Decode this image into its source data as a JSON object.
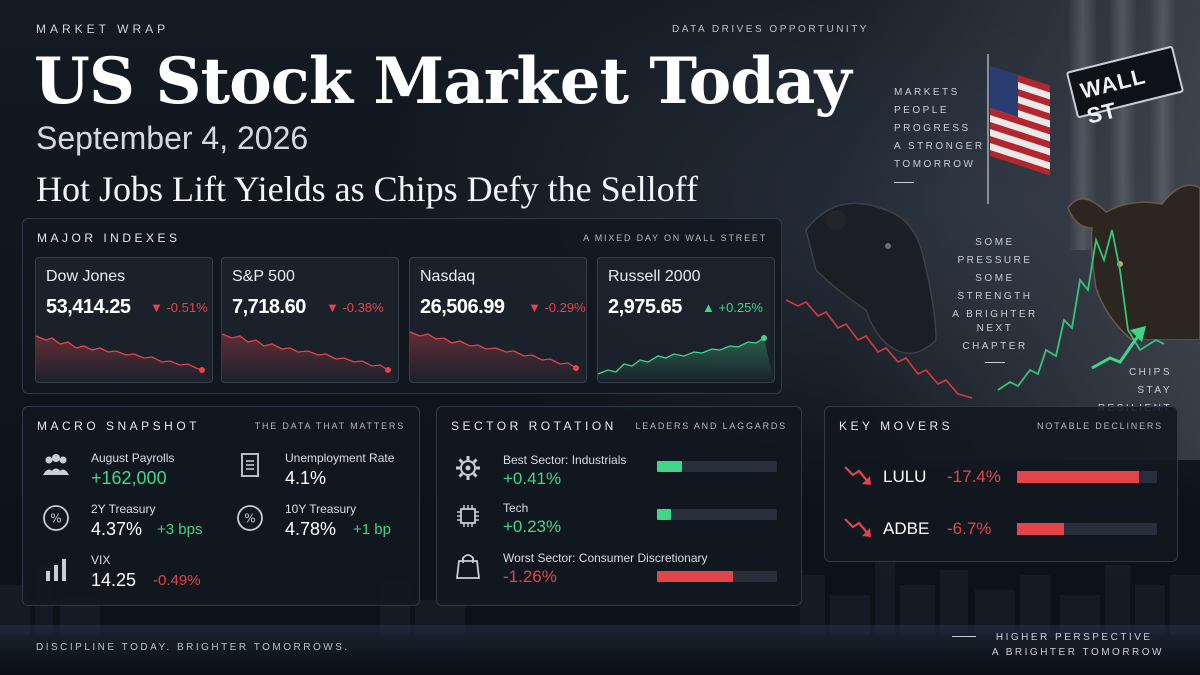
{
  "header": {
    "kicker": "MARKET WRAP",
    "tagline": "DATA DRIVES OPPORTUNITY",
    "title": "US Stock Market Today",
    "date": "September 4, 2026",
    "subtitle": "Hot Jobs Lift Yields as Chips Defy the Selloff"
  },
  "side_text": {
    "upper": [
      "MARKETS",
      "PEOPLE",
      "PROGRESS",
      "A STRONGER",
      "TOMORROW"
    ],
    "middle": [
      "SOME",
      "PRESSURE",
      "SOME",
      "STRENGTH",
      "A BRIGHTER",
      "NEXT CHAPTER"
    ],
    "chips": [
      "CHIPS",
      "STAY RESILIENT"
    ],
    "wall_sign": "WALL ST"
  },
  "indexes": {
    "heading": "MAJOR INDEXES",
    "note": "A MIXED DAY ON WALL STREET",
    "items": [
      {
        "name": "Dow Jones",
        "value": "53,414.25",
        "change": "▼ -0.51%",
        "direction": "down"
      },
      {
        "name": "S&P 500",
        "value": "7,718.60",
        "change": "▼ -0.38%",
        "direction": "down"
      },
      {
        "name": "Nasdaq",
        "value": "26,506.99",
        "change": "▼ -0.29%",
        "direction": "down"
      },
      {
        "name": "Russell 2000",
        "value": "2,975.65",
        "change": "▲ +0.25%",
        "direction": "up"
      }
    ]
  },
  "macro": {
    "heading": "MACRO SNAPSHOT",
    "note": "THE DATA THAT MATTERS",
    "payrolls": {
      "label": "August Payrolls",
      "value": "+162,000",
      "icon": "people-icon"
    },
    "unemployment": {
      "label": "Unemployment Rate",
      "value": "4.1%",
      "icon": "document-icon"
    },
    "t2y": {
      "label": "2Y Treasury",
      "value": "4.37%",
      "change": "+3 bps",
      "icon": "percent-icon"
    },
    "t10y": {
      "label": "10Y Treasury",
      "value": "4.78%",
      "change": "+1 bp",
      "icon": "percent-icon"
    },
    "vix": {
      "label": "VIX",
      "value": "14.25",
      "change": "-0.49%",
      "icon": "bar-chart-icon"
    }
  },
  "sectors": {
    "heading": "SECTOR ROTATION",
    "note": "LEADERS AND LAGGARDS",
    "items": [
      {
        "label_prefix": "Best Sector: ",
        "label_name": "Industrials",
        "value": "+0.41%",
        "level": 0.41,
        "icon": "gear-icon",
        "color": "#3fd68a"
      },
      {
        "label_prefix": "",
        "label_name": "Tech",
        "value": "+0.23%",
        "level": 0.23,
        "icon": "chip-icon",
        "color": "#3fd68a"
      },
      {
        "label_prefix": "Worst Sector: ",
        "label_name": "Consumer Discretionary",
        "value": "-1.26%",
        "level": 1.26,
        "icon": "shopping-bag-icon",
        "color": "#e2444a"
      }
    ]
  },
  "movers": {
    "heading": "KEY MOVERS",
    "note": "NOTABLE DECLINERS",
    "items": [
      {
        "ticker": "LULU",
        "change": "-17.4%",
        "level": 17.4
      },
      {
        "ticker": "ADBE",
        "change": "-6.7%",
        "level": 6.7
      }
    ]
  },
  "footer": {
    "left": "DISCIPLINE TODAY. BRIGHTER TOMORROWS.",
    "right_1": "HIGHER PERSPECTIVE",
    "right_2": "A BRIGHTER TOMORROW"
  },
  "colors": {
    "up": "#3fd68a",
    "down": "#e2444a",
    "background": "#141a22",
    "panel": "#1c222c"
  }
}
